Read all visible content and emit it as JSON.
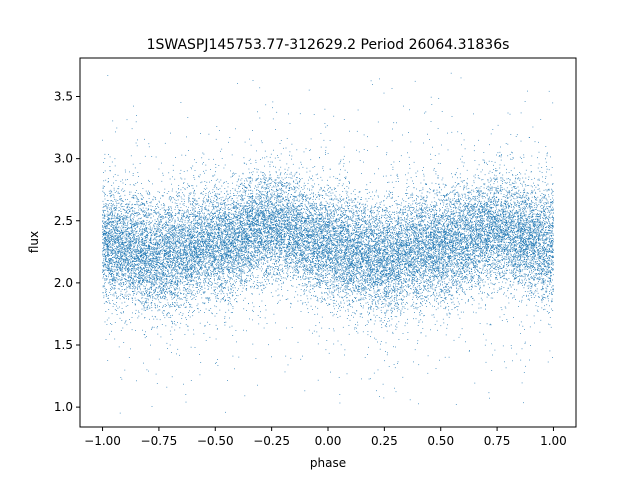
{
  "chart_data": {
    "type": "scatter",
    "title": "1SWASPJ145753.77-312629.2 Period 26064.31836s",
    "xlabel": "phase",
    "ylabel": "flux",
    "xlim": [
      -1.1,
      1.1
    ],
    "ylim": [
      0.84,
      3.81
    ],
    "xticks": [
      -1.0,
      -0.75,
      -0.5,
      -0.25,
      0.0,
      0.25,
      0.5,
      0.75,
      1.0
    ],
    "xtick_labels": [
      "−1.00",
      "−0.75",
      "−0.50",
      "−0.25",
      "0.00",
      "0.25",
      "0.50",
      "0.75",
      "1.00"
    ],
    "yticks": [
      1.0,
      1.5,
      2.0,
      2.5,
      3.0,
      3.5
    ],
    "ytick_labels": [
      "1.0",
      "1.5",
      "2.0",
      "2.5",
      "3.0",
      "3.5"
    ],
    "grid": false,
    "marker_color": "#1f77b4",
    "series": [
      {
        "phase_range": [
          -1.0,
          1.0
        ],
        "flux_profile": {
          "phase": [
            -1.0,
            -0.75,
            -0.5,
            -0.25,
            0.0,
            0.25,
            0.5,
            0.75,
            1.0
          ],
          "median_flux": [
            2.3,
            2.22,
            2.3,
            2.45,
            2.3,
            2.2,
            2.3,
            2.42,
            2.3
          ]
        },
        "core_spread_flux": [
          1.95,
          2.75
        ],
        "outlier_flux_range": [
          0.95,
          3.7
        ]
      }
    ]
  }
}
